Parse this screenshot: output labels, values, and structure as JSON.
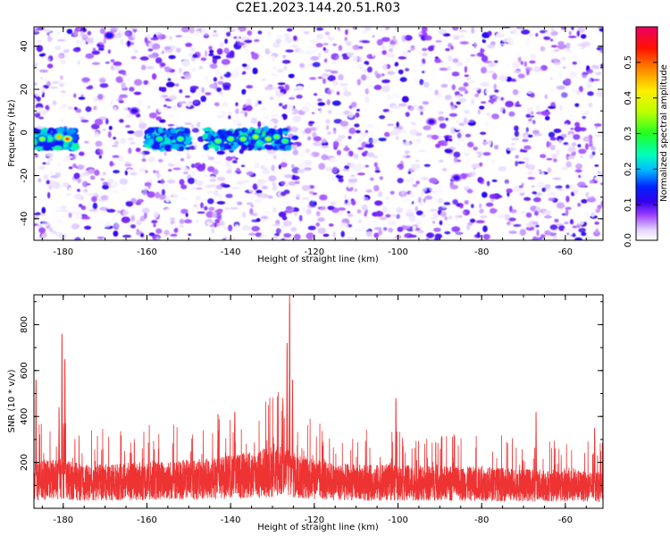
{
  "figure": {
    "title": "C2E1.2023.144.20.51.R03"
  },
  "chart_data": [
    {
      "type": "heatmap",
      "xlabel": "Height of straight line (km)",
      "ylabel": "Frequency (Hz)",
      "xlim": [
        -187,
        -51
      ],
      "ylim": [
        -50,
        49
      ],
      "xticks": [
        -180,
        -160,
        -140,
        -120,
        -100,
        -80,
        -60
      ],
      "yticks": [
        -40,
        -20,
        0,
        20,
        40
      ],
      "colorbar": {
        "label": "Normalized spectral amplitude",
        "range": [
          0,
          0.6
        ],
        "ticks": [
          0.0,
          0.1,
          0.2,
          0.3,
          0.4,
          0.5
        ]
      },
      "note_visual": "dense random speckle of low-amplitude signal with strong band near 0 Hz at -186..-178, -160..-155 and -145..-126 km",
      "hotspots": [
        {
          "x": -185,
          "y": -3,
          "v": 0.35
        },
        {
          "x": -181,
          "y": -2,
          "v": 0.45
        },
        {
          "x": -179,
          "y": -3,
          "v": 0.52
        },
        {
          "x": -157,
          "y": -3,
          "v": 0.3
        },
        {
          "x": -152,
          "y": -3,
          "v": 0.32
        },
        {
          "x": -143,
          "y": -4,
          "v": 0.33
        },
        {
          "x": -140,
          "y": -3,
          "v": 0.34
        },
        {
          "x": -137,
          "y": -3,
          "v": 0.35
        },
        {
          "x": -134,
          "y": -2,
          "v": 0.36
        },
        {
          "x": -131,
          "y": -3,
          "v": 0.37
        },
        {
          "x": -129,
          "y": -2,
          "v": 0.33
        },
        {
          "x": -127,
          "y": -4,
          "v": 0.31
        },
        {
          "x": -169,
          "y": 45,
          "v": 0.15
        },
        {
          "x": -163,
          "y": 10,
          "v": 0.13
        },
        {
          "x": -92,
          "y": 5,
          "v": 0.12
        },
        {
          "x": -86,
          "y": -21,
          "v": 0.12
        }
      ]
    },
    {
      "type": "line",
      "xlabel": "Height of straight line (km)",
      "ylabel": "SNR (10 * v/v)",
      "xlim": [
        -187,
        -51
      ],
      "ylim": [
        0,
        930
      ],
      "xticks": [
        -180,
        -160,
        -140,
        -120,
        -100,
        -80,
        -60
      ],
      "yticks": [
        200,
        400,
        600,
        800
      ],
      "color": "#ee3333",
      "baseline": {
        "x": [
          -187,
          -180,
          -175,
          -160,
          -145,
          -135,
          -128,
          -124,
          -115,
          -100,
          -80,
          -60,
          -51
        ],
        "y": [
          140,
          150,
          130,
          140,
          150,
          170,
          200,
          160,
          135,
          130,
          125,
          115,
          110
        ]
      },
      "peaks": [
        {
          "x": -186.5,
          "y": 560
        },
        {
          "x": -181,
          "y": 440
        },
        {
          "x": -180.3,
          "y": 760
        },
        {
          "x": -179.6,
          "y": 650
        },
        {
          "x": -143,
          "y": 410
        },
        {
          "x": -139,
          "y": 420
        },
        {
          "x": -127.5,
          "y": 480
        },
        {
          "x": -126.5,
          "y": 720
        },
        {
          "x": -125.9,
          "y": 930
        },
        {
          "x": -125.2,
          "y": 560
        },
        {
          "x": -100.5,
          "y": 480
        },
        {
          "x": -67,
          "y": 420
        },
        {
          "x": -53,
          "y": 350
        }
      ]
    }
  ]
}
